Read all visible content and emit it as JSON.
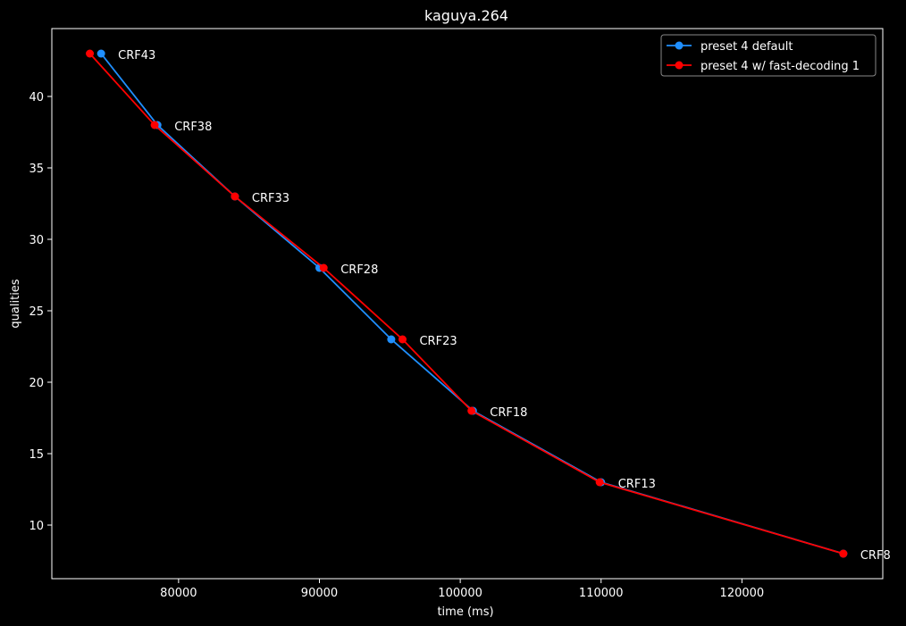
{
  "chart_data": {
    "type": "line",
    "title": "kaguya.264",
    "xlabel": "time (ms)",
    "ylabel": "qualities",
    "xlim": [
      71000,
      130000
    ],
    "ylim": [
      6.25,
      44.75
    ],
    "xticks": [
      80000,
      90000,
      100000,
      110000,
      120000
    ],
    "yticks": [
      10,
      15,
      20,
      25,
      30,
      35,
      40
    ],
    "legend_position": "top-right",
    "grid": false,
    "series": [
      {
        "name": "preset 4 default",
        "color": "#1f8fff",
        "x": [
          74500,
          78500,
          84000,
          90000,
          95100,
          100900,
          110000,
          127200
        ],
        "y": [
          43,
          38,
          33,
          28,
          23,
          18,
          13,
          8
        ]
      },
      {
        "name": "preset 4 w/ fast-decoding 1",
        "color": "#ff0000",
        "x": [
          73700,
          78300,
          84000,
          90300,
          95900,
          100800,
          109900,
          127200
        ],
        "y": [
          43,
          38,
          33,
          28,
          23,
          18,
          13,
          8
        ]
      }
    ],
    "point_labels": [
      {
        "text": "CRF43",
        "x": 74500,
        "y": 43
      },
      {
        "text": "CRF38",
        "x": 78500,
        "y": 38
      },
      {
        "text": "CRF33",
        "x": 84000,
        "y": 33
      },
      {
        "text": "CRF28",
        "x": 90300,
        "y": 28
      },
      {
        "text": "CRF23",
        "x": 95900,
        "y": 23
      },
      {
        "text": "CRF18",
        "x": 100900,
        "y": 18
      },
      {
        "text": "CRF13",
        "x": 110000,
        "y": 13
      },
      {
        "text": "CRF8",
        "x": 127200,
        "y": 8
      }
    ]
  }
}
